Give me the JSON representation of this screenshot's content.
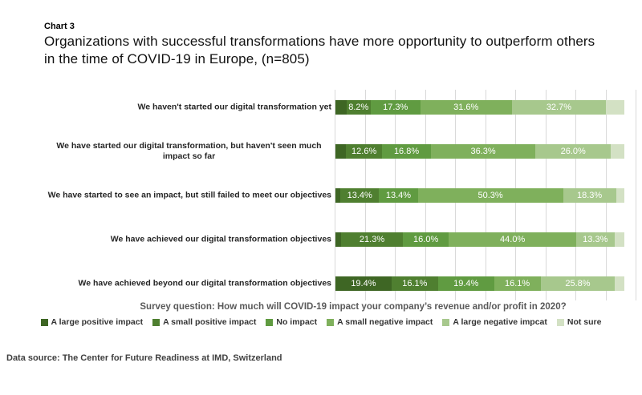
{
  "header": {
    "chart_label": "Chart 3",
    "title_line1": "Organizations with successful transformations have more opportunity to outperform others",
    "title_line2": "in the time of COVID-19 in Europe, (n=805)"
  },
  "chart_data": {
    "type": "bar",
    "orientation": "horizontal",
    "stacked": true,
    "unit": "%",
    "xlim": [
      0,
      100
    ],
    "gridlines": {
      "show": true,
      "interval_pct": 10,
      "color": "#d9d9d9"
    },
    "legend_position": "bottom",
    "categories": [
      "We haven't started our digital transformation yet",
      "We have started our digital transformation, but haven't seen much impact so far",
      "We have started to see an impact, but still failed to meet our objectives",
      "We have achieved our digital transformation objectives",
      "We have achieved beyond our digital transformation objectives"
    ],
    "series": [
      {
        "name": "A large positive impact",
        "color": "#3e6624",
        "values": [
          3.9,
          3.6,
          1.7,
          2.0,
          19.4
        ],
        "data_labels": [
          "",
          "",
          "",
          "",
          "19.4%"
        ]
      },
      {
        "name": "A small positive impact",
        "color": "#4f7f30",
        "values": [
          8.2,
          12.6,
          13.4,
          21.3,
          16.1
        ],
        "data_labels": [
          "8.2%",
          "12.6%",
          "13.4%",
          "21.3%",
          "16.1%"
        ]
      },
      {
        "name": "No impact",
        "color": "#609b41",
        "values": [
          17.3,
          16.8,
          13.4,
          16.0,
          19.4
        ],
        "data_labels": [
          "17.3%",
          "16.8%",
          "13.4%",
          "16.0%",
          "19.4%"
        ]
      },
      {
        "name": "A small negative impact",
        "color": "#7fb05c",
        "values": [
          31.6,
          36.3,
          50.3,
          44.0,
          16.1
        ],
        "data_labels": [
          "31.6%",
          "36.3%",
          "50.3%",
          "44.0%",
          "16.1%"
        ]
      },
      {
        "name": "A large negative impcat",
        "color": "#a7c88d",
        "values": [
          32.7,
          26.0,
          18.3,
          13.3,
          25.8
        ],
        "data_labels": [
          "32.7%",
          "26.0%",
          "18.3%",
          "13.3%",
          "25.8%"
        ]
      },
      {
        "name": "Not sure",
        "color": "#d3e1c4",
        "values": [
          6.3,
          4.7,
          2.9,
          3.4,
          3.2
        ],
        "data_labels": [
          "",
          "",
          "",
          "",
          ""
        ]
      }
    ]
  },
  "survey_question": "Survey question: How much will COVID-19 impact your company’s revenue and/or profit in 2020?",
  "footer": {
    "data_source": "Data source: The Center for Future Readiness at IMD, Switzerland"
  }
}
